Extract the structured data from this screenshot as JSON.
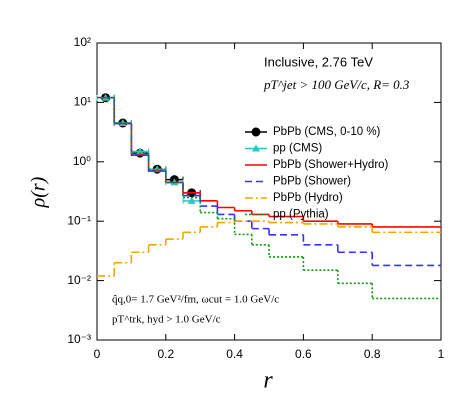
{
  "chart_data": {
    "type": "histogram",
    "xlabel": "r",
    "ylabel": "ρ(r)",
    "annotations": [
      "Inclusive, 2.76 TeV",
      "pT^jet > 100 GeV/c, R= 0.3",
      "q̂q,0= 1.7 GeV²/fm, ωcut = 1.0 GeV/c",
      "pT^trk, hyd > 1.0 GeV/c"
    ],
    "log_y": true,
    "xlim": [
      0,
      1
    ],
    "xticks": [
      0,
      0.2,
      0.4,
      0.6,
      0.8,
      1
    ],
    "ylim": [
      0.001,
      100
    ],
    "yticks": [
      {
        "value": 0.001,
        "label": "10⁻³"
      },
      {
        "value": 0.01,
        "label": "10⁻²"
      },
      {
        "value": 0.1,
        "label": "10⁻¹"
      },
      {
        "value": 1,
        "label": "10⁰"
      },
      {
        "value": 10,
        "label": "10¹"
      },
      {
        "value": 100,
        "label": "10²"
      }
    ],
    "bins": [
      0,
      0.05,
      0.1,
      0.15,
      0.2,
      0.25,
      0.3,
      0.35,
      0.4,
      0.45,
      0.5,
      0.6,
      0.7,
      0.8,
      1
    ],
    "legend": "upper right",
    "series": [
      {
        "name": "PbPb (CMS, 0-10 %)",
        "color": "#000000",
        "marker": "circle",
        "values": [
          12,
          4.5,
          1.4,
          0.75,
          0.5,
          0.3,
          null,
          null,
          null,
          null,
          null,
          null,
          null,
          null
        ]
      },
      {
        "name": "pp (CMS)",
        "color": "#2ec4c4",
        "marker": "triangle",
        "values": [
          12,
          4.5,
          1.5,
          0.75,
          0.45,
          0.22,
          null,
          null,
          null,
          null,
          null,
          null,
          null,
          null
        ]
      },
      {
        "name": "PbPb (Shower+Hydro)",
        "color": "#ff0000",
        "dash": "none",
        "values": [
          12,
          4.4,
          1.3,
          0.7,
          0.45,
          0.3,
          0.22,
          0.17,
          0.15,
          0.13,
          0.12,
          0.1,
          0.09,
          0.08
        ]
      },
      {
        "name": "PbPb (Shower)",
        "color": "#3333ff",
        "dash": "7,4",
        "values": [
          12,
          4.4,
          1.3,
          0.7,
          0.45,
          0.27,
          0.18,
          0.13,
          0.1,
          0.075,
          0.059,
          0.04,
          0.03,
          0.018
        ]
      },
      {
        "name": "PbPb (Hydro)",
        "color": "#f0a800",
        "dash": "8,3,2,3",
        "values": [
          0.012,
          0.02,
          0.03,
          0.04,
          0.05,
          0.065,
          0.08,
          0.095,
          0.1,
          0.1,
          0.095,
          0.09,
          0.08,
          0.065
        ]
      },
      {
        "name": "pp (Pythia)",
        "color": "#119911",
        "dash": "2,2",
        "values": [
          12,
          4.5,
          1.4,
          0.75,
          0.45,
          0.25,
          0.14,
          0.11,
          0.06,
          0.04,
          0.025,
          0.015,
          0.009,
          0.005
        ]
      }
    ]
  }
}
